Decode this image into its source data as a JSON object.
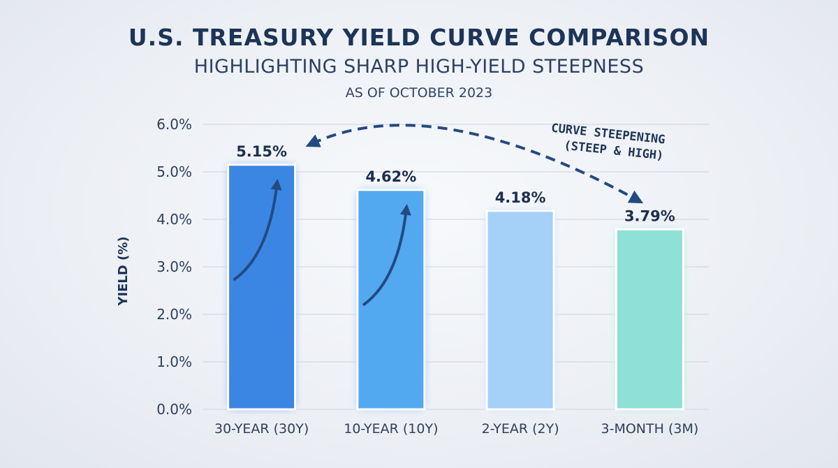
{
  "chart_data": {
    "type": "bar",
    "title": "U.S. TREASURY YIELD CURVE COMPARISON",
    "subtitle": "HIGHLIGHTING SHARP HIGH-YIELD STEEPNESS",
    "date_note": "AS OF OCTOBER 2023",
    "ylabel": "YIELD (%)",
    "xlabel": "",
    "categories": [
      "30-YEAR (30Y)",
      "10-YEAR (10Y)",
      "2-YEAR (2Y)",
      "3-MONTH (3M)"
    ],
    "values": [
      5.15,
      4.62,
      4.18,
      3.79
    ],
    "value_labels": [
      "5.15%",
      "4.62%",
      "4.18%",
      "3.79%"
    ],
    "ylim": [
      0,
      6
    ],
    "yticks": [
      0,
      1,
      2,
      3,
      4,
      5,
      6
    ],
    "ytick_labels": [
      "0.0%",
      "1.0%",
      "2.0%",
      "3.0%",
      "4.0%",
      "5.0%",
      "6.0%"
    ],
    "grid": true,
    "bar_colors": [
      "#3b86e3",
      "#52a9ef",
      "#a5d0f7",
      "#8fe0d6"
    ],
    "annotation": {
      "lines": [
        "CURVE STEEPENING",
        "(STEEP & HIGH)"
      ],
      "from": "30-YEAR (30Y)",
      "to": "3-MONTH (3M)",
      "color": "#234a82"
    }
  }
}
